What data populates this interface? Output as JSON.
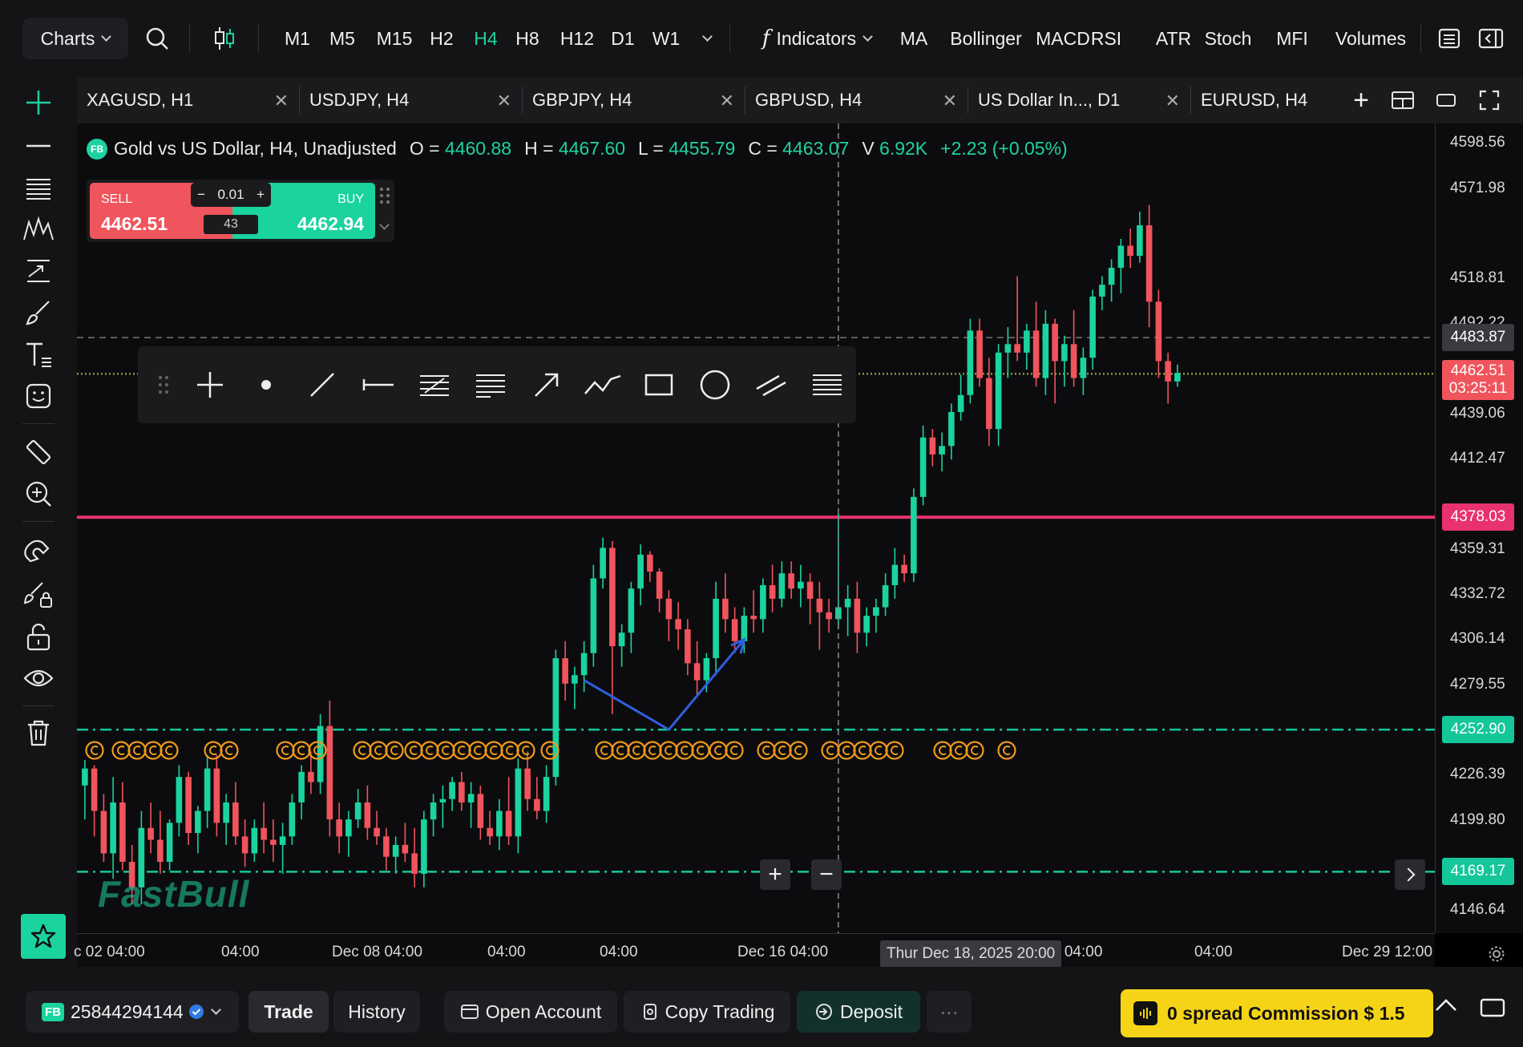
{
  "topbar": {
    "charts_label": "Charts",
    "timeframes": [
      "M1",
      "M5",
      "M15",
      "H2",
      "H4",
      "H8",
      "H12",
      "D1",
      "W1"
    ],
    "active_timeframe": "H4",
    "indicators_label": "Indicators",
    "indicator_shortcuts": [
      "MA",
      "Bollinger",
      "MACD",
      "RSI",
      "ATR",
      "Stoch",
      "MFI",
      "Volumes"
    ]
  },
  "tabs": [
    {
      "label": "XAGUSD, H1"
    },
    {
      "label": "USDJPY, H4"
    },
    {
      "label": "GBPJPY, H4"
    },
    {
      "label": "GBPUSD, H4"
    },
    {
      "label": "US Dollar In..., D1"
    },
    {
      "label": "EURUSD, H4"
    }
  ],
  "info": {
    "badge": "FB",
    "symbol": "Gold vs US Dollar, H4, Unadjusted",
    "o_label": "O =",
    "o": "4460.88",
    "h_label": "H =",
    "h": "4467.60",
    "l_label": "L =",
    "l": "4455.79",
    "c_label": "C =",
    "c": "4463.07",
    "v_label": "V",
    "v": "6.92K",
    "change": "+2.23 (+0.05%)"
  },
  "trade": {
    "sell_label": "SELL",
    "sell_price": "4462.51",
    "buy_label": "BUY",
    "buy_price": "4462.94",
    "lot": "0.01",
    "spread": "43"
  },
  "price_axis": {
    "ticks": [
      "4598.56",
      "4571.98",
      "4518.81",
      "4492.22",
      "4439.06",
      "4412.47",
      "4359.31",
      "4332.72",
      "4306.14",
      "4279.55",
      "4226.39",
      "4199.80",
      "4146.64"
    ],
    "tags": [
      {
        "text": "4483.87",
        "color": "#3a3a3e",
        "price": 4483.87
      },
      {
        "text": "4462.51",
        "sub": "03:25:11",
        "color": "#f0545c",
        "price": 4462.51
      },
      {
        "text": "4378.03",
        "color": "#e8316e",
        "price": 4378.03
      },
      {
        "text": "4252.90",
        "color": "#14c79b",
        "price": 4252.9
      },
      {
        "text": "4169.17",
        "color": "#14c79b",
        "price": 4169.17
      }
    ]
  },
  "time_axis": {
    "ticks": [
      "c 02 04:00",
      "04:00",
      "Dec 08 04:00",
      "04:00",
      "04:00",
      "Dec 16 04:00",
      "2 04:00",
      "04:00",
      "Dec 29 12:00"
    ],
    "crosshair_label": "Thur Dec 18, 2025 20:00"
  },
  "watermark": "FastBull",
  "bottombar": {
    "account": "25844294144",
    "account_badge": "FB",
    "trade_label": "Trade",
    "history_label": "History",
    "open_account_label": "Open Account",
    "copy_trading_label": "Copy Trading",
    "deposit_label": "Deposit",
    "more_label": "···",
    "promo_text": "0 spread Commission $ 1.5"
  },
  "colors": {
    "up": "#1ad39e",
    "down": "#f0545c",
    "resistance": "#e8316e",
    "support": "#14c79b",
    "arrow": "#2f5fe0"
  },
  "chart_data": {
    "type": "candlestick",
    "title": "Gold vs US Dollar, H4, Unadjusted",
    "ylim": [
      4133,
      4610
    ],
    "horizontal_lines": [
      {
        "price": 4378.03,
        "style": "solid",
        "color": "#e8316e"
      },
      {
        "price": 4252.9,
        "style": "dash-dot",
        "color": "#14c79b"
      },
      {
        "price": 4169.17,
        "style": "dash-dot",
        "color": "#14c79b"
      },
      {
        "price": 4462.51,
        "style": "dotted",
        "color": "#8a9a3a"
      },
      {
        "price": 4483.87,
        "style": "dashed",
        "color": "#777"
      }
    ],
    "candles": [
      [
        4220,
        4235,
        4200,
        4230
      ],
      [
        4230,
        4232,
        4190,
        4205
      ],
      [
        4205,
        4215,
        4175,
        4180
      ],
      [
        4180,
        4225,
        4165,
        4210
      ],
      [
        4210,
        4222,
        4170,
        4175
      ],
      [
        4175,
        4185,
        4150,
        4160
      ],
      [
        4160,
        4205,
        4150,
        4195
      ],
      [
        4195,
        4210,
        4180,
        4188
      ],
      [
        4188,
        4205,
        4168,
        4175
      ],
      [
        4175,
        4200,
        4170,
        4198
      ],
      [
        4198,
        4232,
        4190,
        4225
      ],
      [
        4225,
        4228,
        4185,
        4192
      ],
      [
        4192,
        4208,
        4180,
        4205
      ],
      [
        4205,
        4238,
        4195,
        4230
      ],
      [
        4230,
        4238,
        4190,
        4198
      ],
      [
        4198,
        4215,
        4185,
        4210
      ],
      [
        4210,
        4222,
        4185,
        4190
      ],
      [
        4190,
        4200,
        4172,
        4180
      ],
      [
        4180,
        4200,
        4175,
        4195
      ],
      [
        4195,
        4210,
        4180,
        4188
      ],
      [
        4188,
        4200,
        4175,
        4185
      ],
      [
        4185,
        4198,
        4168,
        4190
      ],
      [
        4190,
        4215,
        4185,
        4210
      ],
      [
        4210,
        4232,
        4200,
        4228
      ],
      [
        4228,
        4240,
        4215,
        4222
      ],
      [
        4222,
        4262,
        4215,
        4255
      ],
      [
        4255,
        4270,
        4190,
        4200
      ],
      [
        4200,
        4210,
        4180,
        4190
      ],
      [
        4190,
        4205,
        4178,
        4200
      ],
      [
        4200,
        4218,
        4195,
        4210
      ],
      [
        4210,
        4220,
        4188,
        4195
      ],
      [
        4195,
        4205,
        4185,
        4190
      ],
      [
        4190,
        4195,
        4170,
        4178
      ],
      [
        4178,
        4190,
        4168,
        4185
      ],
      [
        4185,
        4198,
        4175,
        4180
      ],
      [
        4180,
        4195,
        4160,
        4168
      ],
      [
        4168,
        4205,
        4160,
        4200
      ],
      [
        4200,
        4215,
        4190,
        4210
      ],
      [
        4210,
        4220,
        4195,
        4212
      ],
      [
        4212,
        4225,
        4205,
        4222
      ],
      [
        4222,
        4228,
        4205,
        4210
      ],
      [
        4210,
        4222,
        4195,
        4215
      ],
      [
        4215,
        4220,
        4188,
        4195
      ],
      [
        4195,
        4205,
        4185,
        4190
      ],
      [
        4190,
        4212,
        4182,
        4205
      ],
      [
        4205,
        4225,
        4185,
        4190
      ],
      [
        4190,
        4236,
        4180,
        4230
      ],
      [
        4230,
        4240,
        4205,
        4212
      ],
      [
        4212,
        4225,
        4200,
        4205
      ],
      [
        4205,
        4232,
        4198,
        4225
      ],
      [
        4225,
        4300,
        4220,
        4295
      ],
      [
        4295,
        4305,
        4270,
        4280
      ],
      [
        4280,
        4290,
        4265,
        4285
      ],
      [
        4285,
        4305,
        4275,
        4298
      ],
      [
        4298,
        4350,
        4290,
        4342
      ],
      [
        4342,
        4366,
        4336,
        4360
      ],
      [
        4360,
        4364,
        4262,
        4302
      ],
      [
        4302,
        4315,
        4290,
        4310
      ],
      [
        4310,
        4340,
        4298,
        4336
      ],
      [
        4336,
        4362,
        4326,
        4356
      ],
      [
        4356,
        4358,
        4340,
        4346
      ],
      [
        4346,
        4348,
        4322,
        4330
      ],
      [
        4330,
        4335,
        4305,
        4318
      ],
      [
        4318,
        4328,
        4300,
        4312
      ],
      [
        4312,
        4318,
        4285,
        4292
      ],
      [
        4292,
        4305,
        4272,
        4282
      ],
      [
        4282,
        4298,
        4275,
        4295
      ],
      [
        4295,
        4340,
        4285,
        4330
      ],
      [
        4330,
        4345,
        4310,
        4318
      ],
      [
        4318,
        4325,
        4298,
        4305
      ],
      [
        4305,
        4325,
        4298,
        4320
      ],
      [
        4320,
        4335,
        4310,
        4318
      ],
      [
        4318,
        4342,
        4310,
        4338
      ],
      [
        4338,
        4350,
        4322,
        4330
      ],
      [
        4330,
        4352,
        4325,
        4345
      ],
      [
        4345,
        4352,
        4330,
        4336
      ],
      [
        4336,
        4350,
        4325,
        4340
      ],
      [
        4340,
        4345,
        4315,
        4330
      ],
      [
        4330,
        4340,
        4300,
        4322
      ],
      [
        4322,
        4330,
        4310,
        4318
      ],
      [
        4318,
        4380,
        4312,
        4325
      ],
      [
        4325,
        4338,
        4308,
        4330
      ],
      [
        4330,
        4340,
        4298,
        4310
      ],
      [
        4310,
        4325,
        4302,
        4320
      ],
      [
        4320,
        4330,
        4310,
        4325
      ],
      [
        4325,
        4345,
        4320,
        4338
      ],
      [
        4338,
        4360,
        4330,
        4350
      ],
      [
        4350,
        4356,
        4340,
        4345
      ],
      [
        4345,
        4395,
        4340,
        4390
      ],
      [
        4390,
        4432,
        4385,
        4425
      ],
      [
        4425,
        4430,
        4408,
        4415
      ],
      [
        4415,
        4428,
        4405,
        4420
      ],
      [
        4420,
        4445,
        4412,
        4440
      ],
      [
        4440,
        4462,
        4435,
        4450
      ],
      [
        4450,
        4495,
        4445,
        4488
      ],
      [
        4488,
        4495,
        4455,
        4460
      ],
      [
        4460,
        4472,
        4420,
        4430
      ],
      [
        4430,
        4480,
        4420,
        4475
      ],
      [
        4475,
        4490,
        4460,
        4480
      ],
      [
        4480,
        4520,
        4470,
        4475
      ],
      [
        4475,
        4492,
        4465,
        4488
      ],
      [
        4488,
        4505,
        4455,
        4460
      ],
      [
        4460,
        4500,
        4450,
        4492
      ],
      [
        4492,
        4495,
        4445,
        4470
      ],
      [
        4470,
        4485,
        4455,
        4480
      ],
      [
        4480,
        4500,
        4455,
        4460
      ],
      [
        4460,
        4478,
        4450,
        4472
      ],
      [
        4472,
        4512,
        4465,
        4508
      ],
      [
        4508,
        4520,
        4500,
        4515
      ],
      [
        4515,
        4530,
        4505,
        4525
      ],
      [
        4525,
        4542,
        4510,
        4538
      ],
      [
        4538,
        4548,
        4525,
        4532
      ],
      [
        4532,
        4558,
        4528,
        4550
      ],
      [
        4550,
        4562,
        4490,
        4505
      ],
      [
        4505,
        4512,
        4460,
        4470
      ],
      [
        4470,
        4475,
        4445,
        4458
      ],
      [
        4458,
        4468,
        4455,
        4463
      ]
    ]
  }
}
